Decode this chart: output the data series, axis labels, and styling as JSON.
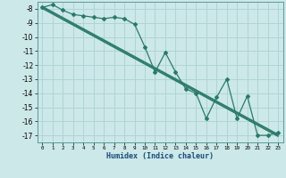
{
  "xlabel": "Humidex (Indice chaleur)",
  "ylabel": "",
  "background_color": "#cce8e8",
  "grid_color": "#b0d4d4",
  "line_color": "#2a7a6a",
  "xlim": [
    -0.5,
    23.5
  ],
  "ylim": [
    -17.5,
    -7.5
  ],
  "yticks": [
    -8,
    -9,
    -10,
    -11,
    -12,
    -13,
    -14,
    -15,
    -16,
    -17
  ],
  "xticks": [
    0,
    1,
    2,
    3,
    4,
    5,
    6,
    7,
    8,
    9,
    10,
    11,
    12,
    13,
    14,
    15,
    16,
    17,
    18,
    19,
    20,
    21,
    22,
    23
  ],
  "series1_x": [
    0,
    1,
    2,
    3,
    4,
    5,
    6,
    7,
    8,
    9,
    10,
    11,
    12,
    13,
    14,
    15,
    16,
    17,
    18,
    19,
    20,
    21,
    22,
    23
  ],
  "series1_y": [
    -7.9,
    -7.7,
    -8.1,
    -8.4,
    -8.5,
    -8.6,
    -8.7,
    -8.6,
    -8.7,
    -9.1,
    -10.7,
    -12.5,
    -11.1,
    -12.5,
    -13.7,
    -14.0,
    -15.8,
    -14.3,
    -13.0,
    -15.8,
    -14.2,
    -17.0,
    -17.0,
    -16.8
  ],
  "series2_x": [
    0,
    23
  ],
  "series2_y": [
    -7.9,
    -17.0
  ],
  "trend_offsets": [
    -0.08,
    -0.03,
    0.03,
    0.08
  ]
}
